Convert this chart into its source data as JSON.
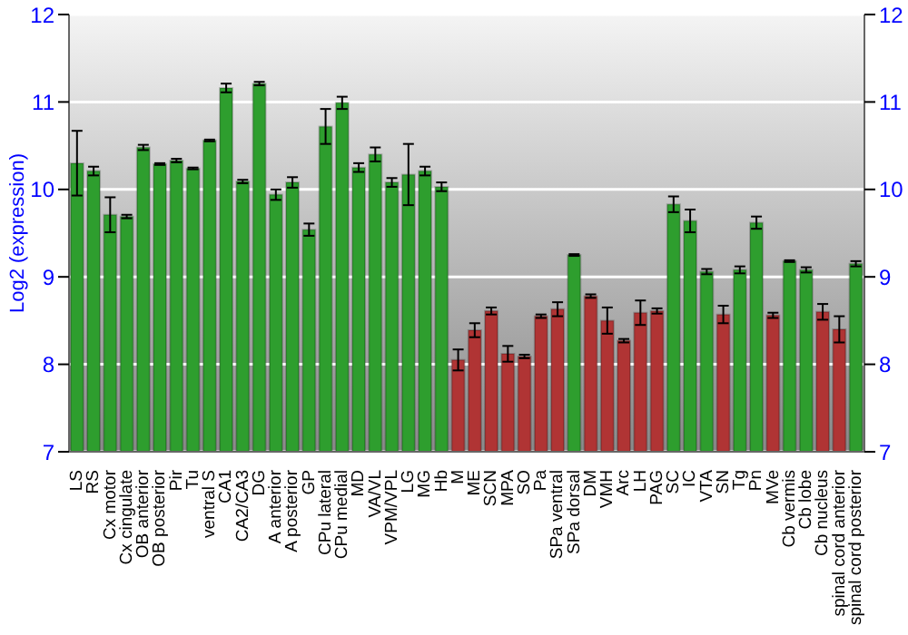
{
  "chart_data": {
    "type": "bar",
    "ylabel": "Log2 (expression)",
    "categories": [
      "LS",
      "RS",
      "Cx motor",
      "Cx cingulate",
      "OB anterior",
      "OB posterior",
      "Pir",
      "Tu",
      "ventral S",
      "CA1",
      "CA2/CA3",
      "DG",
      "A anterior",
      "A posterior",
      "GP",
      "CPu lateral",
      "CPu medial",
      "MD",
      "VA/VL",
      "VPM/VPL",
      "LG",
      "MG",
      "Hb",
      "M",
      "ME",
      "SCN",
      "MPA",
      "SO",
      "Pa",
      "SPa ventral",
      "SPa dorsal",
      "DM",
      "VMH",
      "Arc",
      "LH",
      "PAG",
      "SC",
      "IC",
      "VTA",
      "SN",
      "Tg",
      "Pn",
      "MVe",
      "Cb vermis",
      "Cb lobe",
      "Cb nucleus",
      "spinal cord anterior",
      "spinal cord posterior"
    ],
    "values": [
      10.3,
      10.21,
      9.71,
      9.69,
      10.48,
      10.29,
      10.33,
      10.24,
      10.56,
      11.16,
      10.09,
      11.21,
      9.94,
      10.08,
      9.54,
      10.72,
      10.99,
      10.25,
      10.4,
      10.08,
      10.17,
      10.21,
      10.03,
      8.05,
      8.39,
      8.61,
      8.12,
      8.09,
      8.55,
      8.63,
      9.25,
      8.78,
      8.5,
      8.27,
      8.59,
      8.61,
      9.83,
      9.64,
      9.06,
      8.57,
      9.08,
      9.62,
      8.56,
      9.18,
      9.08,
      8.6,
      8.4,
      9.15
    ],
    "errors": [
      0.37,
      0.05,
      0.2,
      0.02,
      0.03,
      0.01,
      0.02,
      0.01,
      0.01,
      0.05,
      0.02,
      0.02,
      0.06,
      0.06,
      0.07,
      0.2,
      0.07,
      0.05,
      0.08,
      0.05,
      0.35,
      0.05,
      0.05,
      0.12,
      0.08,
      0.04,
      0.09,
      0.02,
      0.02,
      0.08,
      0.01,
      0.02,
      0.15,
      0.02,
      0.14,
      0.03,
      0.09,
      0.13,
      0.03,
      0.1,
      0.04,
      0.07,
      0.03,
      0.01,
      0.03,
      0.09,
      0.15,
      0.03
    ],
    "colors": [
      "#2e9e2e",
      "#2e9e2e",
      "#2e9e2e",
      "#2e9e2e",
      "#2e9e2e",
      "#2e9e2e",
      "#2e9e2e",
      "#2e9e2e",
      "#2e9e2e",
      "#2e9e2e",
      "#2e9e2e",
      "#2e9e2e",
      "#2e9e2e",
      "#2e9e2e",
      "#2e9e2e",
      "#2e9e2e",
      "#2e9e2e",
      "#2e9e2e",
      "#2e9e2e",
      "#2e9e2e",
      "#2e9e2e",
      "#2e9e2e",
      "#2e9e2e",
      "#b03434",
      "#b03434",
      "#b03434",
      "#b03434",
      "#b03434",
      "#b03434",
      "#b03434",
      "#2e9e2e",
      "#b03434",
      "#b03434",
      "#b03434",
      "#b03434",
      "#b03434",
      "#2e9e2e",
      "#2e9e2e",
      "#2e9e2e",
      "#b03434",
      "#2e9e2e",
      "#2e9e2e",
      "#b03434",
      "#2e9e2e",
      "#2e9e2e",
      "#b03434",
      "#b03434",
      "#2e9e2e"
    ],
    "ylim": [
      7,
      12
    ],
    "yticks": [
      7,
      8,
      9,
      10,
      11,
      12
    ],
    "y2lim": [
      7,
      12
    ],
    "y2ticks": [
      7,
      8,
      9,
      10,
      11,
      12
    ],
    "grid": "y"
  }
}
